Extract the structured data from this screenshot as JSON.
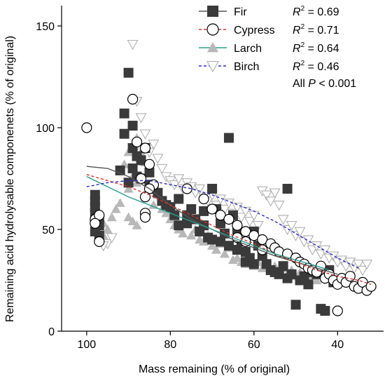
{
  "chart_data": {
    "type": "scatter",
    "xlabel": "Mass remaining (% of original)",
    "ylabel": "Remaining acid hydrolysable componenets (% of original)",
    "x_reversed": true,
    "xlim": [
      106,
      29
    ],
    "ylim": [
      0,
      160
    ],
    "x_ticks": [
      100,
      80,
      60,
      40
    ],
    "y_ticks": [
      0,
      50,
      100,
      150
    ],
    "x_tick_labels": [
      "100",
      "80",
      "60",
      "40"
    ],
    "y_tick_labels": [
      "0",
      "50",
      "100",
      "150"
    ],
    "legend_position": "top-right",
    "annotation": "All P < 0.001",
    "annotation_prefix": "All ",
    "annotation_italic": "P",
    "annotation_suffix": " < 0.001",
    "series": [
      {
        "name": "Fir",
        "marker": "square",
        "marker_color": "#3a3a3a",
        "line_color": "#555555",
        "line_style": "solid",
        "r2_prefix": "R",
        "r2_value": " = 0.69",
        "fit_curve": [
          [
            100,
            81
          ],
          [
            95,
            80
          ],
          [
            90,
            76
          ],
          [
            85,
            70
          ],
          [
            80,
            62
          ],
          [
            75,
            55
          ],
          [
            70,
            50
          ],
          [
            65,
            45
          ],
          [
            60,
            41
          ],
          [
            55,
            37
          ],
          [
            50,
            34
          ],
          [
            45,
            31
          ],
          [
            40,
            28
          ]
        ],
        "points": [
          [
            98,
            67
          ],
          [
            98,
            64
          ],
          [
            98,
            61
          ],
          [
            98,
            58
          ],
          [
            97,
            55
          ],
          [
            97,
            52
          ],
          [
            98,
            49
          ],
          [
            97,
            47
          ],
          [
            90,
            127
          ],
          [
            91,
            107
          ],
          [
            89,
            101
          ],
          [
            91,
            97
          ],
          [
            89,
            90
          ],
          [
            88,
            86
          ],
          [
            87,
            84
          ],
          [
            86,
            90
          ],
          [
            89,
            80
          ],
          [
            87,
            75
          ],
          [
            85,
            78
          ],
          [
            84,
            70
          ],
          [
            82,
            64
          ],
          [
            80,
            61
          ],
          [
            79,
            57
          ],
          [
            78,
            52
          ],
          [
            76,
            57
          ],
          [
            76,
            53
          ],
          [
            74,
            55
          ],
          [
            73,
            49
          ],
          [
            72,
            52
          ],
          [
            71,
            46
          ],
          [
            70,
            70
          ],
          [
            69,
            60
          ],
          [
            68,
            53
          ],
          [
            67,
            48
          ],
          [
            66,
            42
          ],
          [
            65,
            57
          ],
          [
            66,
            95
          ],
          [
            64,
            50
          ],
          [
            63,
            44
          ],
          [
            62,
            39
          ],
          [
            61,
            36
          ],
          [
            60,
            49
          ],
          [
            59,
            42
          ],
          [
            58,
            37
          ],
          [
            57,
            33
          ],
          [
            56,
            30
          ],
          [
            55,
            29
          ],
          [
            54,
            28
          ],
          [
            53,
            32
          ],
          [
            52,
            26
          ],
          [
            51,
            28
          ],
          [
            52,
            70
          ],
          [
            50,
            13
          ],
          [
            49,
            25
          ],
          [
            48,
            27
          ],
          [
            47,
            23
          ],
          [
            46,
            29
          ],
          [
            45,
            28
          ],
          [
            44,
            11
          ],
          [
            43,
            10
          ],
          [
            42,
            30
          ],
          [
            41,
            24
          ],
          [
            60,
            33
          ],
          [
            62,
            34
          ],
          [
            64,
            40
          ],
          [
            68,
            44
          ],
          [
            70,
            45
          ],
          [
            72,
            59
          ],
          [
            75,
            60
          ],
          [
            78,
            65
          ],
          [
            81,
            62
          ],
          [
            83,
            68
          ],
          [
            85,
            72
          ],
          [
            88,
            76
          ],
          [
            90,
            73
          ],
          [
            92,
            79
          ]
        ]
      },
      {
        "name": "Cypress",
        "marker": "circle",
        "marker_color": "#000000",
        "line_color": "#e0302a",
        "line_style": "dashed",
        "r2_prefix": "R",
        "r2_value": " = 0.71",
        "fit_curve": [
          [
            100,
            77
          ],
          [
            95,
            74
          ],
          [
            90,
            71
          ],
          [
            85,
            67
          ],
          [
            80,
            62
          ],
          [
            75,
            57
          ],
          [
            70,
            52
          ],
          [
            65,
            47
          ],
          [
            60,
            43
          ],
          [
            55,
            38
          ],
          [
            50,
            34
          ],
          [
            45,
            30
          ],
          [
            40,
            27
          ],
          [
            35,
            25
          ],
          [
            32,
            23
          ]
        ],
        "points": [
          [
            100,
            100
          ],
          [
            98,
            55
          ],
          [
            97,
            57
          ],
          [
            98,
            53
          ],
          [
            97,
            44
          ],
          [
            89,
            114
          ],
          [
            88,
            93
          ],
          [
            86,
            90
          ],
          [
            85,
            82
          ],
          [
            87,
            75
          ],
          [
            84,
            72
          ],
          [
            85,
            70
          ],
          [
            86,
            66
          ],
          [
            86,
            58
          ],
          [
            86,
            56
          ],
          [
            76,
            70
          ],
          [
            72,
            65
          ],
          [
            70,
            60
          ],
          [
            68,
            57
          ],
          [
            66,
            55
          ],
          [
            64,
            52
          ],
          [
            62,
            49
          ],
          [
            60,
            47
          ],
          [
            58,
            45
          ],
          [
            56,
            43
          ],
          [
            55,
            41
          ],
          [
            54,
            39
          ],
          [
            52,
            38
          ],
          [
            50,
            36
          ],
          [
            49,
            34
          ],
          [
            48,
            33
          ],
          [
            47,
            31
          ],
          [
            46,
            30
          ],
          [
            45,
            29
          ],
          [
            44,
            32
          ],
          [
            43,
            26
          ],
          [
            42,
            28
          ],
          [
            41,
            25
          ],
          [
            40,
            23
          ],
          [
            39,
            26
          ],
          [
            38,
            24
          ],
          [
            37,
            27
          ],
          [
            36,
            22
          ],
          [
            35,
            21
          ],
          [
            34,
            24
          ],
          [
            33,
            20
          ],
          [
            32,
            22
          ],
          [
            40,
            10
          ],
          [
            62,
            44
          ],
          [
            64,
            46
          ],
          [
            58,
            40
          ]
        ]
      },
      {
        "name": "Larch",
        "marker": "triangle-up",
        "marker_color": "#b8b8b8",
        "line_color": "#2a9d8f",
        "line_style": "solid",
        "r2_prefix": "R",
        "r2_value": " = 0.64",
        "fit_curve": [
          [
            100,
            76
          ],
          [
            95,
            71
          ],
          [
            90,
            66
          ],
          [
            85,
            62
          ],
          [
            80,
            58
          ],
          [
            75,
            54
          ],
          [
            70,
            50
          ],
          [
            65,
            46
          ],
          [
            60,
            42
          ],
          [
            55,
            38
          ],
          [
            50,
            35
          ],
          [
            45,
            32
          ],
          [
            42,
            30
          ]
        ],
        "points": [
          [
            96,
            53
          ],
          [
            95,
            50
          ],
          [
            96,
            47
          ],
          [
            94,
            56
          ],
          [
            93,
            60
          ],
          [
            92,
            63
          ],
          [
            90,
            70
          ],
          [
            89,
            76
          ],
          [
            88,
            95
          ],
          [
            87,
            88
          ],
          [
            86,
            83
          ],
          [
            85,
            78
          ],
          [
            88,
            73
          ],
          [
            90,
            56
          ],
          [
            89,
            54
          ],
          [
            88,
            52
          ],
          [
            84,
            62
          ],
          [
            83,
            67
          ],
          [
            82,
            60
          ],
          [
            81,
            58
          ],
          [
            80,
            55
          ],
          [
            79,
            52
          ],
          [
            78,
            50
          ],
          [
            77,
            48
          ],
          [
            76,
            54
          ],
          [
            75,
            47
          ],
          [
            74,
            50
          ],
          [
            73,
            45
          ],
          [
            72,
            44
          ],
          [
            71,
            47
          ],
          [
            70,
            42
          ],
          [
            69,
            40
          ],
          [
            68,
            43
          ],
          [
            67,
            38
          ],
          [
            66,
            41
          ],
          [
            65,
            35
          ],
          [
            64,
            36
          ],
          [
            63,
            34
          ],
          [
            62,
            33
          ],
          [
            61,
            37
          ],
          [
            60,
            32
          ],
          [
            59,
            34
          ],
          [
            58,
            31
          ],
          [
            57,
            33
          ],
          [
            56,
            30
          ],
          [
            55,
            32
          ],
          [
            54,
            29
          ],
          [
            53,
            31
          ],
          [
            52,
            28
          ],
          [
            51,
            30
          ],
          [
            50,
            27
          ],
          [
            49,
            29
          ],
          [
            48,
            26
          ],
          [
            47,
            28
          ],
          [
            46,
            27
          ],
          [
            45,
            25
          ],
          [
            44,
            29
          ],
          [
            43,
            26
          ],
          [
            90,
            88
          ],
          [
            91,
            82
          ]
        ]
      },
      {
        "name": "Birch",
        "marker": "triangle-down",
        "marker_color": "#b0b0b0",
        "line_color": "#2a2ad0",
        "line_style": "dashed",
        "r2_prefix": "R",
        "r2_value": " = 0.46",
        "fit_curve": [
          [
            100,
            71
          ],
          [
            95,
            73
          ],
          [
            90,
            74
          ],
          [
            85,
            74
          ],
          [
            80,
            72
          ],
          [
            75,
            70
          ],
          [
            70,
            67
          ],
          [
            65,
            63
          ],
          [
            60,
            59
          ],
          [
            55,
            54
          ],
          [
            50,
            48
          ],
          [
            45,
            42
          ],
          [
            40,
            36
          ],
          [
            35,
            31
          ]
        ],
        "points": [
          [
            89,
            141
          ],
          [
            88,
            113
          ],
          [
            87,
            105
          ],
          [
            86,
            97
          ],
          [
            88,
            91
          ],
          [
            85,
            88
          ],
          [
            84,
            92
          ],
          [
            83,
            85
          ],
          [
            82,
            80
          ],
          [
            81,
            76
          ],
          [
            80,
            74
          ],
          [
            79,
            72
          ],
          [
            78,
            75
          ],
          [
            77,
            70
          ],
          [
            76,
            73
          ],
          [
            75,
            71
          ],
          [
            74,
            68
          ],
          [
            73,
            70
          ],
          [
            72,
            66
          ],
          [
            71,
            64
          ],
          [
            70,
            67
          ],
          [
            69,
            62
          ],
          [
            68,
            65
          ],
          [
            67,
            60
          ],
          [
            66,
            63
          ],
          [
            65,
            58
          ],
          [
            64,
            61
          ],
          [
            63,
            56
          ],
          [
            62,
            59
          ],
          [
            61,
            54
          ],
          [
            60,
            57
          ],
          [
            59,
            52
          ],
          [
            58,
            69
          ],
          [
            57,
            67
          ],
          [
            56,
            64
          ],
          [
            55,
            68
          ],
          [
            54,
            62
          ],
          [
            53,
            55
          ],
          [
            52,
            50
          ],
          [
            51,
            52
          ],
          [
            50,
            47
          ],
          [
            49,
            49
          ],
          [
            48,
            44
          ],
          [
            47,
            45
          ],
          [
            46,
            40
          ],
          [
            45,
            42
          ],
          [
            44,
            38
          ],
          [
            43,
            40
          ],
          [
            42,
            36
          ],
          [
            41,
            37
          ],
          [
            40,
            34
          ],
          [
            39,
            35
          ],
          [
            38,
            32
          ],
          [
            37,
            34
          ],
          [
            36,
            31
          ],
          [
            35,
            33
          ],
          [
            34,
            30
          ],
          [
            33,
            33
          ],
          [
            95,
            43
          ],
          [
            96,
            42
          ],
          [
            94,
            46
          ]
        ]
      }
    ]
  }
}
